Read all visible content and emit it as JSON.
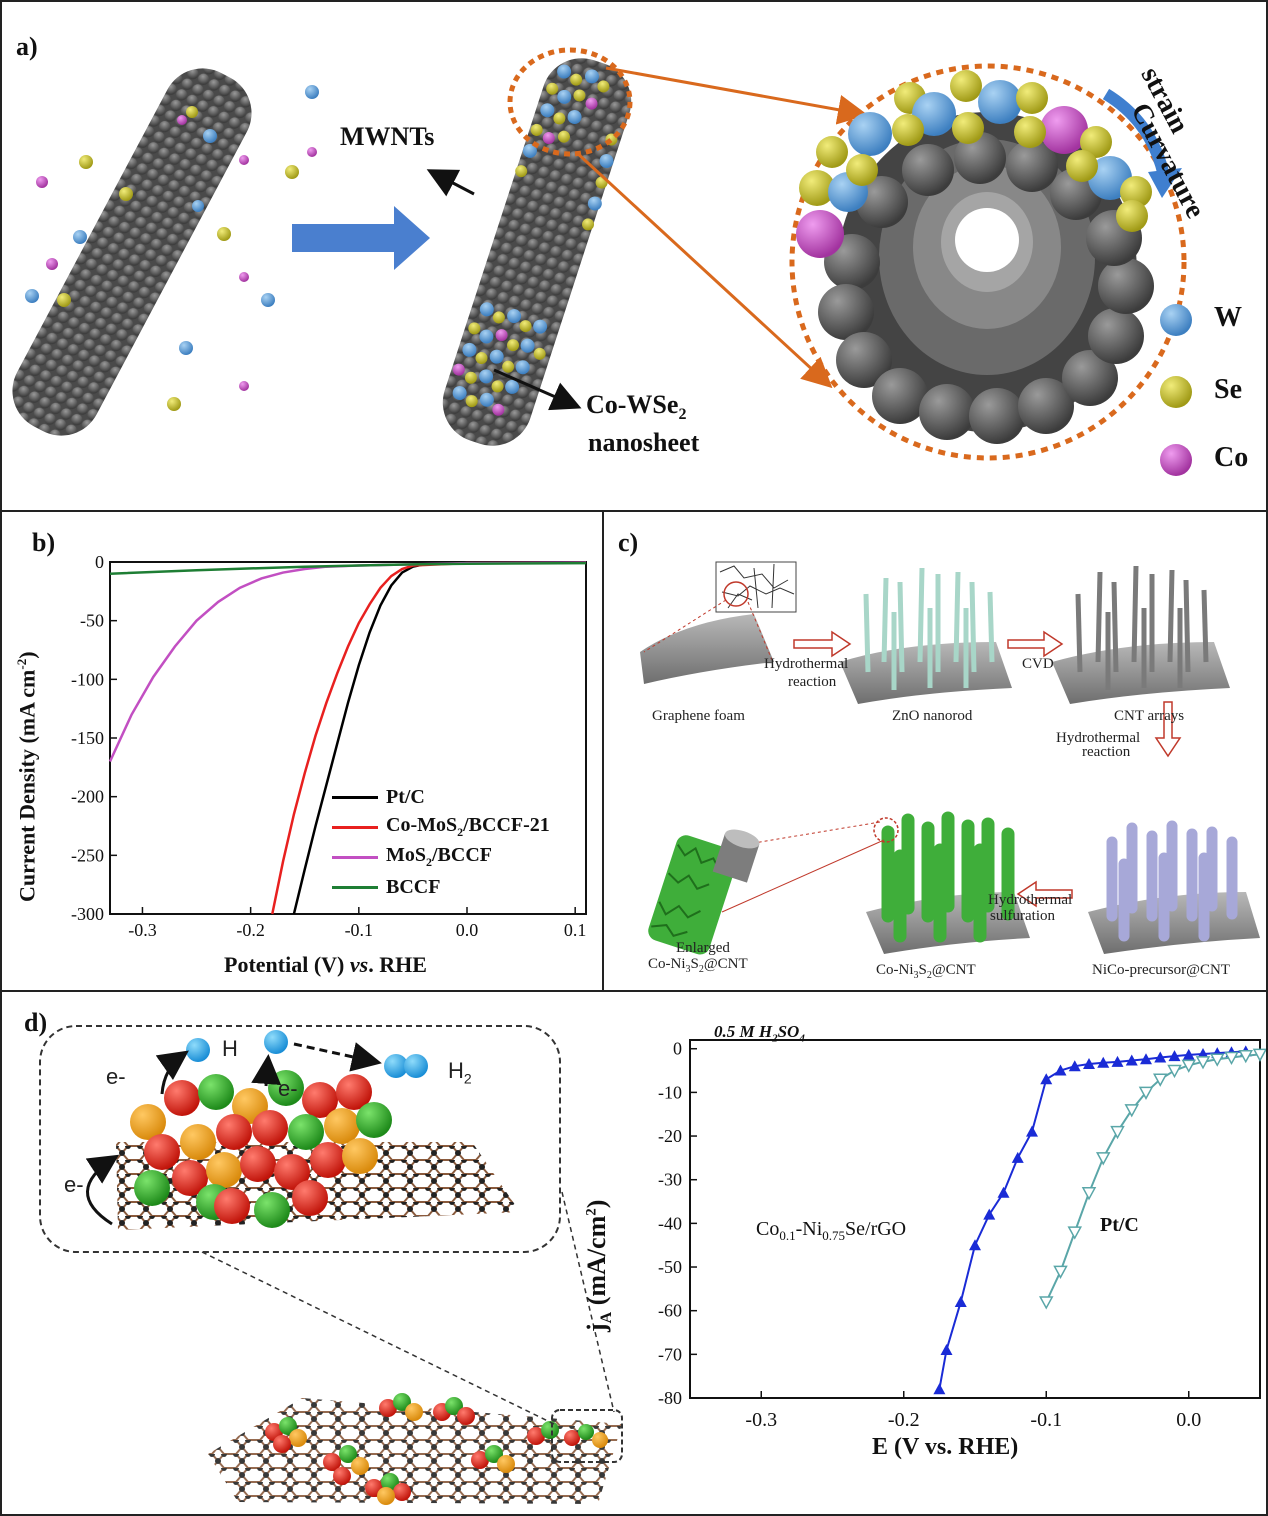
{
  "panel_a": {
    "label": "a)",
    "mwnts": "MWNTs",
    "nanosheet_line1": "Co-WSe",
    "nanosheet_sub": "2",
    "nanosheet_line2": "nanosheet",
    "curvature": "Curvature",
    "strain": "strain",
    "legend": [
      {
        "name": "W",
        "color": "#5b9bd5"
      },
      {
        "name": "Se",
        "color": "#c8c22a"
      },
      {
        "name": "Co",
        "color": "#c24fc2"
      }
    ]
  },
  "panel_b": {
    "label": "b)",
    "ylabel": "Current Density (mA cm",
    "ylabel_sup": "-2",
    "ylabel_end": ")",
    "xlabel_pre": "Potential (V) ",
    "xlabel_it": "vs",
    "xlabel_post": ". RHE",
    "xticks": [
      "-0.3",
      "-0.2",
      "-0.1",
      "0.0",
      "0.1"
    ],
    "yticks": [
      "0",
      "-50",
      "-100",
      "-150",
      "-200",
      "-250",
      "-300"
    ],
    "legend": [
      {
        "name": "Pt/C",
        "color": "#000000"
      },
      {
        "name": "Co-MoS",
        "sub": "2",
        "rest": "/BCCF-21",
        "color": "#e8201f"
      },
      {
        "name": "MoS",
        "sub": "2",
        "rest": "/BCCF",
        "color": "#c24fc2"
      },
      {
        "name": "BCCF",
        "color": "#1e7e34"
      }
    ]
  },
  "panel_c": {
    "label": "c)",
    "graphene": "Graphene foam",
    "hydro1_a": "Hydrothermal",
    "hydro1_b": "reaction",
    "zno": "ZnO nanorod",
    "cvd": "CVD",
    "cnt": "CNT arrays",
    "hydro2_a": "Hydrothermal",
    "hydro2_b": "reaction",
    "precursor": "NiCo-precursor@CNT",
    "sulf_a": "Hydrothermal",
    "sulf_b": "sulfuration",
    "coni_pre": "Co-Ni",
    "coni_sub": "3",
    "coni_s": "S",
    "coni_sub2": "2",
    "coni_post": "@CNT",
    "enlarged": "Enlarged"
  },
  "panel_d": {
    "label": "d)",
    "e1": "e-",
    "e2": "e-",
    "e3": "e-",
    "h": "H",
    "h2": "H",
    "h2_sub": "2",
    "electrolyte": "0.5 M H",
    "electrolyte_sub": "2",
    "electrolyte_end": "SO",
    "electrolyte_sub2": "4",
    "ylabel": "j",
    "ylabel_sub": "A",
    "ylabel_rest": " (mA/cm",
    "ylabel_sup": "2",
    "ylabel_end": ")",
    "xlabel": "E (V vs. RHE)",
    "xticks": [
      "-0.3",
      "-0.2",
      "-0.1",
      "0.0"
    ],
    "yticks": [
      "0",
      "-10",
      "-20",
      "-30",
      "-40",
      "-50",
      "-60",
      "-70",
      "-80"
    ],
    "series1_a": "Co",
    "series1_s1": "0.1",
    "series1_b": "-Ni",
    "series1_s2": "0.75",
    "series1_c": "Se/rGO",
    "series2": "Pt/C"
  },
  "chart_data": [
    {
      "type": "line",
      "xlabel": "Potential (V) vs. RHE",
      "ylabel": "Current Density (mA cm-2)",
      "xlim": [
        -0.33,
        0.11
      ],
      "ylim": [
        -300,
        0
      ],
      "series": [
        {
          "name": "Pt/C",
          "color": "#000000",
          "x": [
            -0.16,
            -0.15,
            -0.14,
            -0.13,
            -0.12,
            -0.11,
            -0.1,
            -0.09,
            -0.08,
            -0.07,
            -0.06,
            -0.05,
            -0.04,
            0.0,
            0.11
          ],
          "y": [
            -300,
            -262,
            -225,
            -190,
            -155,
            -120,
            -88,
            -60,
            -37,
            -20,
            -9,
            -4,
            -2,
            -1,
            -0.5
          ]
        },
        {
          "name": "Co-MoS2/BCCF-21",
          "color": "#e8201f",
          "x": [
            -0.18,
            -0.17,
            -0.16,
            -0.15,
            -0.14,
            -0.13,
            -0.12,
            -0.11,
            -0.1,
            -0.09,
            -0.08,
            -0.07,
            -0.06,
            -0.05,
            0.0,
            0.11
          ],
          "y": [
            -300,
            -255,
            -215,
            -180,
            -148,
            -120,
            -95,
            -72,
            -52,
            -36,
            -22,
            -12,
            -6,
            -3,
            -1,
            -0.5
          ]
        },
        {
          "name": "MoS2/BCCF",
          "color": "#c24fc2",
          "x": [
            -0.33,
            -0.31,
            -0.29,
            -0.27,
            -0.25,
            -0.23,
            -0.21,
            -0.19,
            -0.17,
            -0.15,
            -0.13,
            -0.1,
            -0.05,
            0.0,
            0.11
          ],
          "y": [
            -170,
            -130,
            -98,
            -72,
            -50,
            -34,
            -22,
            -14,
            -9,
            -6,
            -4,
            -3,
            -2,
            -1,
            -0.5
          ]
        },
        {
          "name": "BCCF",
          "color": "#1e7e34",
          "x": [
            -0.33,
            -0.25,
            -0.15,
            -0.1,
            -0.05,
            0.0,
            0.11
          ],
          "y": [
            -10,
            -7,
            -4,
            -3,
            -2,
            -1.5,
            -1
          ]
        }
      ]
    },
    {
      "type": "line",
      "xlabel": "E (V vs. RHE)",
      "ylabel": "jA (mA/cm2)",
      "xlim": [
        -0.35,
        0.05
      ],
      "ylim": [
        -80,
        2
      ],
      "series": [
        {
          "name": "Co0.1-Ni0.75Se/rGO",
          "color": "#1a2bd6",
          "x": [
            -0.175,
            -0.17,
            -0.16,
            -0.15,
            -0.14,
            -0.13,
            -0.12,
            -0.11,
            -0.1,
            -0.09,
            -0.08,
            -0.07,
            -0.06,
            -0.05,
            -0.04,
            -0.03,
            -0.02,
            -0.01,
            0.0,
            0.01,
            0.02,
            0.03,
            0.04
          ],
          "y": [
            -78,
            -69,
            -58,
            -45,
            -38,
            -33,
            -25,
            -19,
            -7,
            -5,
            -4,
            -3.5,
            -3.2,
            -3,
            -2.7,
            -2.4,
            -2,
            -1.7,
            -1.4,
            -1.2,
            -1,
            -0.8,
            -0.6
          ]
        },
        {
          "name": "Pt/C",
          "color": "#5aa6a8",
          "x": [
            -0.1,
            -0.09,
            -0.08,
            -0.07,
            -0.06,
            -0.05,
            -0.04,
            -0.03,
            -0.02,
            -0.01,
            0.0,
            0.01,
            0.02,
            0.03,
            0.04,
            0.05
          ],
          "y": [
            -58,
            -51,
            -42,
            -33,
            -25,
            -19,
            -14,
            -10,
            -7,
            -5,
            -3.8,
            -3,
            -2.4,
            -2,
            -1.6,
            -1.3
          ]
        }
      ]
    }
  ]
}
